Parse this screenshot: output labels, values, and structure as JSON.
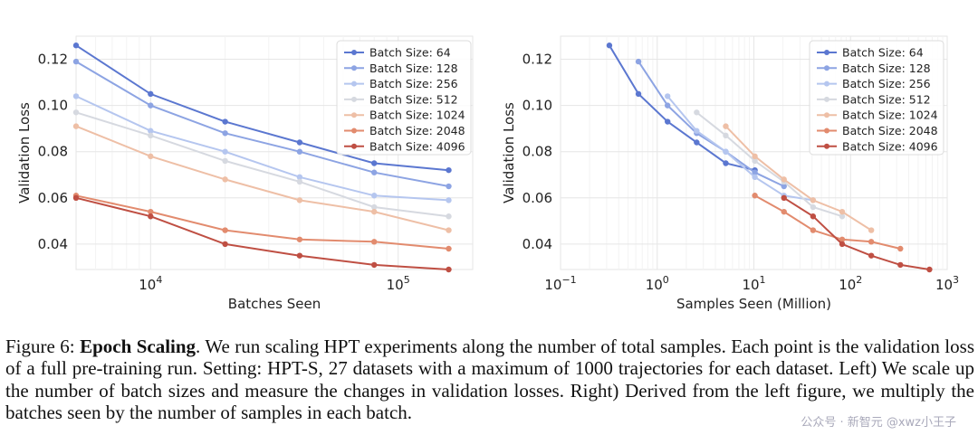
{
  "chart_data": [
    {
      "type": "line",
      "xlabel": "Batches Seen",
      "ylabel": "Validation Loss",
      "xscale": "log",
      "xlim": [
        5000,
        200000
      ],
      "ylim": [
        0.029,
        0.13
      ],
      "xticks": [
        {
          "value": 10000,
          "base": "10",
          "exp": "4"
        },
        {
          "value": 100000,
          "base": "10",
          "exp": "5"
        }
      ],
      "yticks": [
        0.04,
        0.06,
        0.08,
        0.1,
        0.12
      ],
      "ytick_labels": [
        "0.04",
        "0.06",
        "0.08",
        "0.10",
        "0.12"
      ],
      "grid": true,
      "legend_position": "top-right",
      "series": [
        {
          "name": "Batch Size: 64",
          "color": "#5b77d0",
          "x": [
            5000,
            10000,
            20000,
            40000,
            80000,
            160000
          ],
          "y": [
            0.126,
            0.105,
            0.093,
            0.084,
            0.075,
            0.072
          ]
        },
        {
          "name": "Batch Size: 128",
          "color": "#8da4e3",
          "x": [
            5000,
            10000,
            20000,
            40000,
            80000,
            160000
          ],
          "y": [
            0.119,
            0.1,
            0.088,
            0.08,
            0.071,
            0.065
          ]
        },
        {
          "name": "Batch Size: 256",
          "color": "#b5c6ef",
          "x": [
            5000,
            10000,
            20000,
            40000,
            80000,
            160000
          ],
          "y": [
            0.104,
            0.089,
            0.08,
            0.069,
            0.061,
            0.059
          ]
        },
        {
          "name": "Batch Size: 512",
          "color": "#d6d9e0",
          "x": [
            5000,
            10000,
            20000,
            40000,
            80000,
            160000
          ],
          "y": [
            0.097,
            0.087,
            0.076,
            0.067,
            0.056,
            0.052
          ]
        },
        {
          "name": "Batch Size: 1024",
          "color": "#eebfa6",
          "x": [
            5000,
            10000,
            20000,
            40000,
            80000,
            160000
          ],
          "y": [
            0.091,
            0.078,
            0.068,
            0.059,
            0.054,
            0.046
          ]
        },
        {
          "name": "Batch Size: 2048",
          "color": "#e28b6e",
          "x": [
            5000,
            10000,
            20000,
            40000,
            80000,
            160000
          ],
          "y": [
            0.061,
            0.054,
            0.046,
            0.042,
            0.041,
            0.038
          ]
        },
        {
          "name": "Batch Size: 4096",
          "color": "#bf4f43",
          "x": [
            5000,
            10000,
            20000,
            40000,
            80000,
            160000
          ],
          "y": [
            0.06,
            0.052,
            0.04,
            0.035,
            0.031,
            0.029
          ]
        }
      ]
    },
    {
      "type": "line",
      "xlabel": "Samples Seen (Million)",
      "ylabel": "Validation Loss",
      "xscale": "log",
      "xlim": [
        0.1,
        1000
      ],
      "ylim": [
        0.029,
        0.13
      ],
      "xticks": [
        {
          "value": 0.1,
          "base": "10",
          "exp": "−1"
        },
        {
          "value": 1,
          "base": "10",
          "exp": "0"
        },
        {
          "value": 10,
          "base": "10",
          "exp": "1"
        },
        {
          "value": 100,
          "base": "10",
          "exp": "2"
        },
        {
          "value": 1000,
          "base": "10",
          "exp": "3"
        }
      ],
      "yticks": [
        0.04,
        0.06,
        0.08,
        0.1,
        0.12
      ],
      "ytick_labels": [
        "0.04",
        "0.06",
        "0.08",
        "0.10",
        "0.12"
      ],
      "grid": true,
      "legend_position": "top-right",
      "series": [
        {
          "name": "Batch Size: 64",
          "color": "#5b77d0",
          "x": [
            0.32,
            0.64,
            1.28,
            2.56,
            5.12,
            10.24
          ],
          "y": [
            0.126,
            0.105,
            0.093,
            0.084,
            0.075,
            0.072
          ]
        },
        {
          "name": "Batch Size: 128",
          "color": "#8da4e3",
          "x": [
            0.64,
            1.28,
            2.56,
            5.12,
            10.24,
            20.48
          ],
          "y": [
            0.119,
            0.1,
            0.088,
            0.08,
            0.071,
            0.065
          ]
        },
        {
          "name": "Batch Size: 256",
          "color": "#b5c6ef",
          "x": [
            1.28,
            2.56,
            5.12,
            10.24,
            20.48,
            40.96
          ],
          "y": [
            0.104,
            0.089,
            0.08,
            0.069,
            0.061,
            0.059
          ]
        },
        {
          "name": "Batch Size: 512",
          "color": "#d6d9e0",
          "x": [
            2.56,
            5.12,
            10.24,
            20.48,
            40.96,
            81.92
          ],
          "y": [
            0.097,
            0.087,
            0.076,
            0.067,
            0.056,
            0.052
          ]
        },
        {
          "name": "Batch Size: 1024",
          "color": "#eebfa6",
          "x": [
            5.12,
            10.24,
            20.48,
            40.96,
            81.92,
            163.84
          ],
          "y": [
            0.091,
            0.078,
            0.068,
            0.059,
            0.054,
            0.046
          ]
        },
        {
          "name": "Batch Size: 2048",
          "color": "#e28b6e",
          "x": [
            10.24,
            20.48,
            40.96,
            81.92,
            163.84,
            327.68
          ],
          "y": [
            0.061,
            0.054,
            0.046,
            0.042,
            0.041,
            0.038
          ]
        },
        {
          "name": "Batch Size: 4096",
          "color": "#bf4f43",
          "x": [
            20.48,
            40.96,
            81.92,
            163.84,
            327.68,
            655.36
          ],
          "y": [
            0.06,
            0.052,
            0.04,
            0.035,
            0.031,
            0.029
          ]
        }
      ]
    }
  ],
  "caption": {
    "figure_label": "Figure 6:",
    "bold_title": "Epoch Scaling",
    "text": ". We run scaling HPT experiments along the number of total samples. Each point is the validation loss of a full pre-training run. Setting: HPT-S, 27 datasets with a maximum of 1000 trajectories for each dataset. Left) We scale up the number of batch sizes and measure the changes in validation losses. Right) Derived from the left figure, we multiply the batches seen by the number of samples in each batch."
  },
  "watermark": "公众号 · 新智元  @xwz小王子"
}
